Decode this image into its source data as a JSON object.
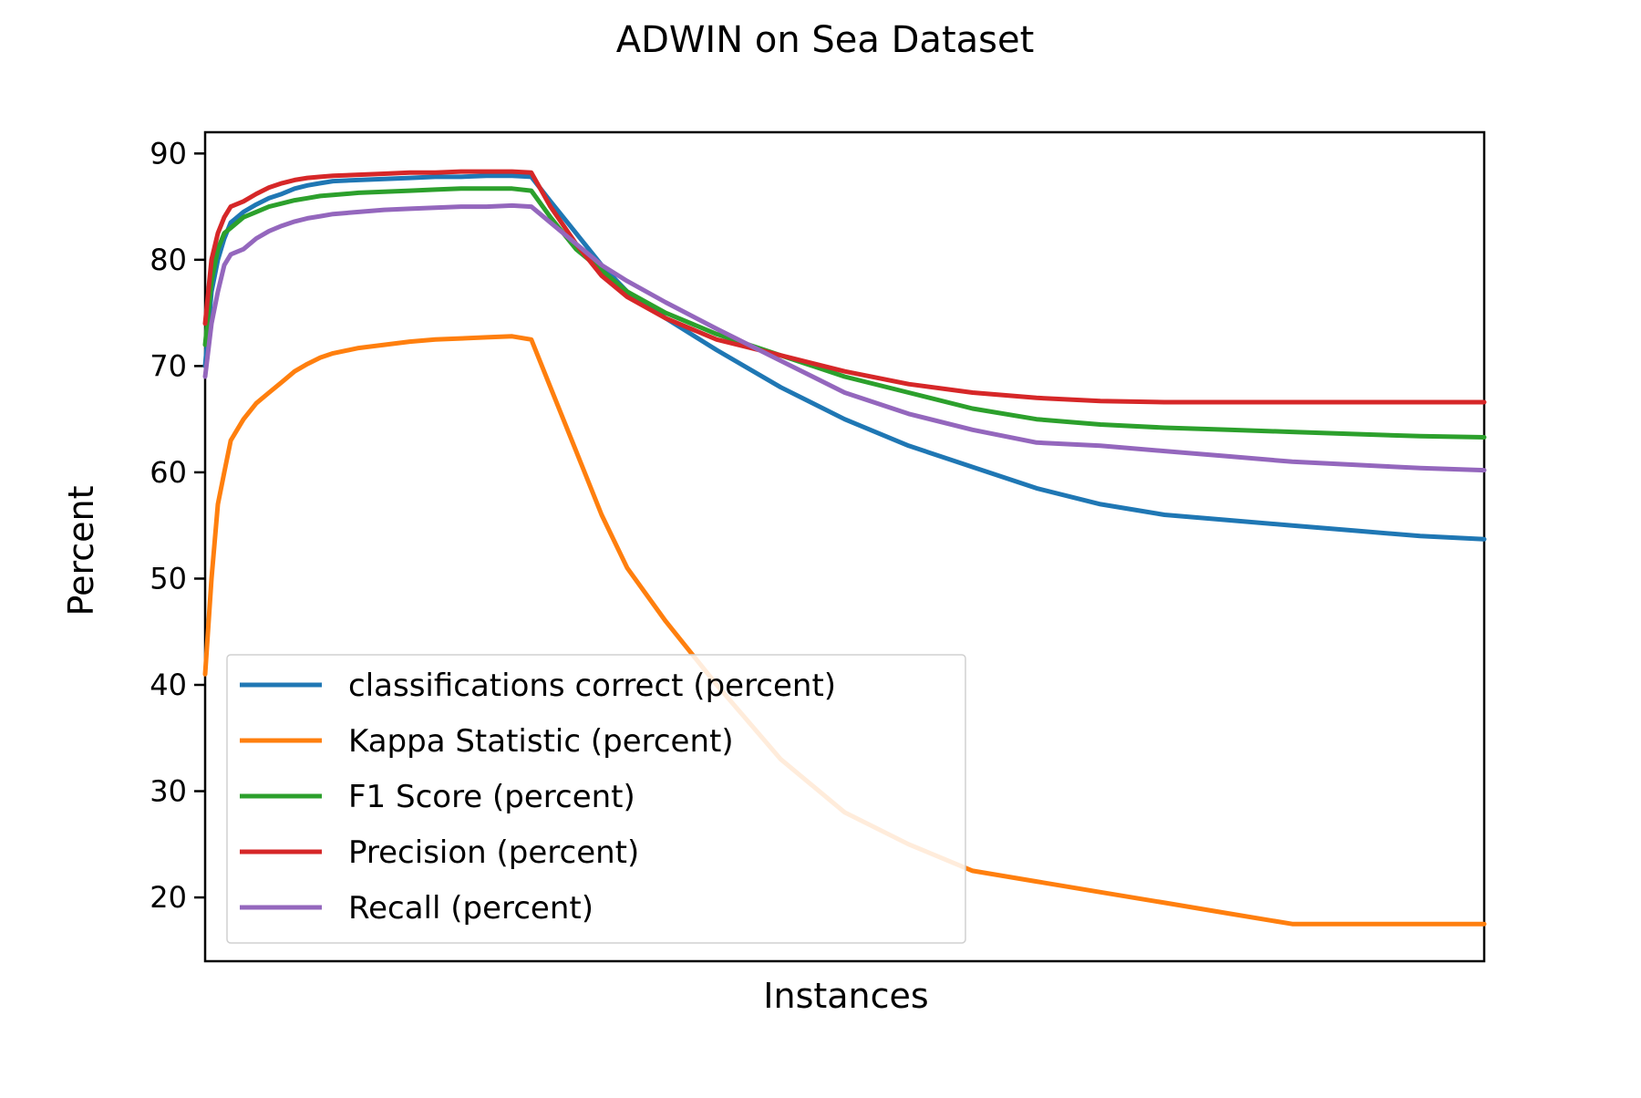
{
  "chart_data": {
    "type": "line",
    "title": "ADWIN on Sea Dataset",
    "xlabel": "Instances",
    "ylabel": "Percent",
    "ylim": [
      14,
      92
    ],
    "xlim": [
      0,
      100
    ],
    "yticks": [
      20,
      30,
      40,
      50,
      60,
      70,
      80,
      90
    ],
    "x_ticks_shown": false,
    "grid": false,
    "legend_position": "lower-left",
    "series": [
      {
        "name": "classifications correct (percent)",
        "color": "#1f77b4",
        "x": [
          0,
          0.5,
          1,
          1.5,
          2,
          3,
          4,
          5,
          6,
          7,
          8,
          9,
          10,
          12,
          14,
          16,
          18,
          20,
          22,
          24,
          25.5,
          27,
          29,
          31,
          33,
          36,
          40,
          45,
          50,
          55,
          60,
          65,
          70,
          75,
          80,
          85,
          90,
          95,
          100
        ],
        "values": [
          70,
          77,
          80,
          82,
          83.5,
          84.5,
          85.2,
          85.8,
          86.2,
          86.7,
          87,
          87.2,
          87.4,
          87.5,
          87.6,
          87.7,
          87.8,
          87.8,
          87.9,
          87.9,
          87.8,
          85.5,
          82.5,
          79.5,
          77,
          74.5,
          71.5,
          68,
          65,
          62.5,
          60.5,
          58.5,
          57,
          56,
          55.5,
          55,
          54.5,
          54,
          53.7
        ]
      },
      {
        "name": "Kappa Statistic (percent)",
        "color": "#ff7f0e",
        "x": [
          0,
          0.5,
          1,
          1.5,
          2,
          3,
          4,
          5,
          6,
          7,
          8,
          9,
          10,
          12,
          14,
          16,
          18,
          20,
          22,
          24,
          25.5,
          27,
          29,
          31,
          33,
          36,
          40,
          45,
          50,
          55,
          60,
          65,
          70,
          75,
          80,
          85,
          90,
          95,
          100
        ],
        "values": [
          41,
          50,
          57,
          60,
          63,
          65,
          66.5,
          67.5,
          68.5,
          69.5,
          70.2,
          70.8,
          71.2,
          71.7,
          72,
          72.3,
          72.5,
          72.6,
          72.7,
          72.8,
          72.5,
          68,
          62,
          56,
          51,
          46,
          40,
          33,
          28,
          25,
          22.5,
          21.5,
          20.5,
          19.5,
          18.5,
          17.5,
          17.5,
          17.5,
          17.5
        ]
      },
      {
        "name": "F1 Score (percent)",
        "color": "#2ca02c",
        "x": [
          0,
          0.5,
          1,
          1.5,
          2,
          3,
          4,
          5,
          6,
          7,
          8,
          9,
          10,
          12,
          14,
          16,
          18,
          20,
          22,
          24,
          25.5,
          27,
          29,
          31,
          33,
          36,
          40,
          45,
          50,
          55,
          60,
          65,
          70,
          75,
          80,
          85,
          90,
          95,
          100
        ],
        "values": [
          72,
          78,
          81,
          82.5,
          83,
          84,
          84.5,
          85,
          85.3,
          85.6,
          85.8,
          86,
          86.1,
          86.3,
          86.4,
          86.5,
          86.6,
          86.7,
          86.7,
          86.7,
          86.5,
          84,
          81,
          79,
          77,
          75,
          73,
          71,
          69,
          67.5,
          66,
          65,
          64.5,
          64.2,
          64,
          63.8,
          63.6,
          63.4,
          63.3
        ]
      },
      {
        "name": "Precision (percent)",
        "color": "#d62728",
        "x": [
          0,
          0.5,
          1,
          1.5,
          2,
          3,
          4,
          5,
          6,
          7,
          8,
          9,
          10,
          12,
          14,
          16,
          18,
          20,
          22,
          24,
          25.5,
          27,
          29,
          31,
          33,
          36,
          40,
          45,
          50,
          55,
          60,
          65,
          70,
          75,
          80,
          85,
          90,
          95,
          100
        ],
        "values": [
          74,
          80,
          82.5,
          84,
          85,
          85.5,
          86.2,
          86.8,
          87.2,
          87.5,
          87.7,
          87.8,
          87.9,
          88,
          88.1,
          88.2,
          88.2,
          88.3,
          88.3,
          88.3,
          88.2,
          85,
          81.5,
          78.5,
          76.5,
          74.5,
          72.5,
          71,
          69.5,
          68.3,
          67.5,
          67,
          66.7,
          66.6,
          66.6,
          66.6,
          66.6,
          66.6,
          66.6
        ]
      },
      {
        "name": "Recall (percent)",
        "color": "#9467bd",
        "x": [
          0,
          0.5,
          1,
          1.5,
          2,
          3,
          4,
          5,
          6,
          7,
          8,
          9,
          10,
          12,
          14,
          16,
          18,
          20,
          22,
          24,
          25.5,
          27,
          29,
          31,
          33,
          36,
          40,
          45,
          50,
          55,
          60,
          65,
          70,
          75,
          80,
          85,
          90,
          95,
          100
        ],
        "values": [
          69,
          74,
          77,
          79.5,
          80.5,
          81,
          82,
          82.7,
          83.2,
          83.6,
          83.9,
          84.1,
          84.3,
          84.5,
          84.7,
          84.8,
          84.9,
          85,
          85,
          85.1,
          85,
          83.5,
          81.5,
          79.5,
          78,
          76,
          73.5,
          70.5,
          67.5,
          65.5,
          64,
          62.8,
          62.5,
          62,
          61.5,
          61,
          60.7,
          60.4,
          60.2
        ]
      }
    ]
  }
}
